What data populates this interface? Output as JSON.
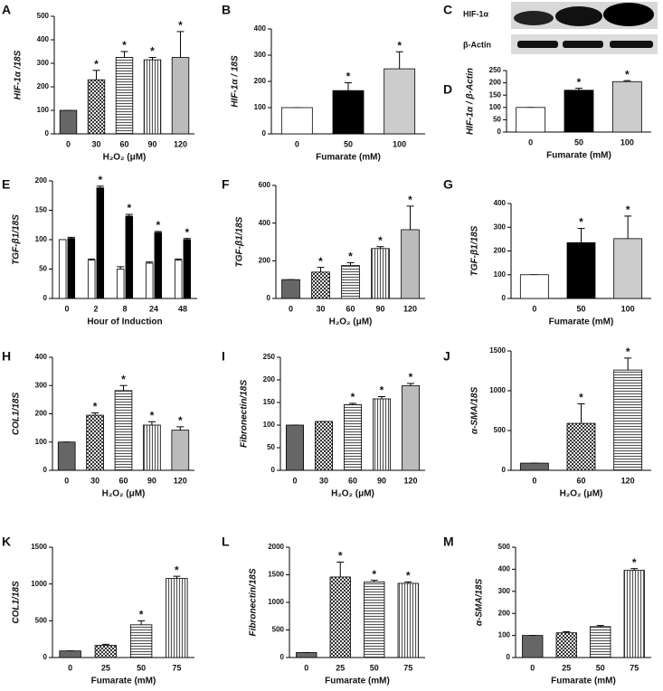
{
  "chart_data": [
    {
      "type": "bar",
      "panel": "A",
      "ylabel": "HIF-1α /18S",
      "xlabel": "H₂O₂ (μM)",
      "categories": [
        "0",
        "30",
        "60",
        "90",
        "120"
      ],
      "values": [
        100,
        230,
        325,
        315,
        325
      ],
      "errors": [
        0,
        40,
        25,
        10,
        110
      ],
      "significance": [
        null,
        "*",
        "*",
        "*",
        "*"
      ],
      "fills": [
        "#666666",
        "checker",
        "hlines",
        "vlines",
        "#bbbbbb"
      ],
      "ylim": [
        0,
        500
      ],
      "yticks": [
        0,
        100,
        200,
        300,
        400,
        500
      ]
    },
    {
      "type": "bar",
      "panel": "B",
      "ylabel": "HIF-1α / 18S",
      "xlabel": "Fumarate (mM)",
      "categories": [
        "0",
        "50",
        "100"
      ],
      "values": [
        100,
        165,
        248
      ],
      "errors": [
        0,
        30,
        65
      ],
      "significance": [
        null,
        "*",
        "*"
      ],
      "fills": [
        "#ffffff",
        "#000000",
        "#cccccc"
      ],
      "ylim": [
        0,
        400
      ],
      "yticks": [
        0,
        100,
        200,
        300,
        400
      ]
    },
    {
      "type": "bar",
      "panel": "D",
      "ylabel": "HIF-1α / β-Actin",
      "xlabel": "Fumarate (mM)",
      "categories": [
        "0",
        "50",
        "100"
      ],
      "values": [
        100,
        170,
        205
      ],
      "errors": [
        0,
        8,
        4
      ],
      "significance": [
        null,
        "*",
        "*"
      ],
      "fills": [
        "#ffffff",
        "#000000",
        "#cccccc"
      ],
      "ylim": [
        0,
        250
      ],
      "yticks": [
        0,
        50,
        100,
        150,
        200,
        250
      ]
    },
    {
      "type": "bar",
      "panel": "E",
      "ylabel": "TGF-β1/18S",
      "xlabel": "Hour of Induction",
      "categories": [
        "0",
        "2",
        "8",
        "24",
        "48"
      ],
      "series": [
        {
          "color": "#ffffff",
          "values": [
            100,
            65,
            50,
            60,
            65
          ],
          "errors": [
            0,
            2,
            4,
            2,
            2
          ],
          "significance": [
            null,
            null,
            null,
            null,
            null
          ]
        },
        {
          "color": "#000000",
          "values": [
            102,
            188,
            140,
            112,
            100
          ],
          "errors": [
            2,
            3,
            3,
            2,
            2
          ],
          "significance": [
            null,
            "*",
            "*",
            "*",
            "*"
          ]
        }
      ],
      "ylim": [
        0,
        200
      ],
      "yticks": [
        0,
        50,
        100,
        150,
        200
      ]
    },
    {
      "type": "bar",
      "panel": "F",
      "ylabel": "TGF-β1/18S",
      "xlabel": "H₂O₂ (μM)",
      "categories": [
        "0",
        "30",
        "60",
        "90",
        "120"
      ],
      "values": [
        100,
        140,
        175,
        265,
        365
      ],
      "errors": [
        0,
        25,
        15,
        10,
        125
      ],
      "significance": [
        null,
        "*",
        "*",
        "*",
        "*"
      ],
      "fills": [
        "#666666",
        "checker",
        "hlines",
        "vlines",
        "#bbbbbb"
      ],
      "ylim": [
        0,
        600
      ],
      "yticks": [
        0,
        200,
        400,
        600
      ]
    },
    {
      "type": "bar",
      "panel": "G",
      "ylabel": "TGF-β1/18S",
      "xlabel": "Fumarate (mM)",
      "categories": [
        "0",
        "50",
        "100"
      ],
      "values": [
        100,
        235,
        252
      ],
      "errors": [
        0,
        60,
        95
      ],
      "significance": [
        null,
        "*",
        "*"
      ],
      "fills": [
        "#ffffff",
        "#000000",
        "#cccccc"
      ],
      "ylim": [
        0,
        400
      ],
      "yticks": [
        0,
        100,
        200,
        300,
        400
      ]
    },
    {
      "type": "bar",
      "panel": "H",
      "ylabel": "COL1/18S",
      "xlabel": "H₂O₂ (μM)",
      "categories": [
        "0",
        "30",
        "60",
        "90",
        "120"
      ],
      "values": [
        100,
        195,
        282,
        160,
        142
      ],
      "errors": [
        0,
        8,
        18,
        12,
        12
      ],
      "significance": [
        null,
        "*",
        "*",
        "*",
        "*"
      ],
      "fills": [
        "#666666",
        "checker",
        "hlines",
        "vlines",
        "#bbbbbb"
      ],
      "ylim": [
        0,
        400
      ],
      "yticks": [
        0,
        100,
        200,
        300,
        400
      ]
    },
    {
      "type": "bar",
      "panel": "I",
      "ylabel": "Fibronectin/18S",
      "xlabel": "H₂O₂ (μM)",
      "categories": [
        "0",
        "30",
        "60",
        "90",
        "120"
      ],
      "values": [
        100,
        108,
        145,
        158,
        187
      ],
      "errors": [
        0,
        0,
        3,
        5,
        5
      ],
      "significance": [
        null,
        null,
        "*",
        "*",
        "*"
      ],
      "fills": [
        "#666666",
        "checker",
        "hlines",
        "vlines",
        "#bbbbbb"
      ],
      "ylim": [
        0,
        250
      ],
      "yticks": [
        0,
        50,
        100,
        150,
        200,
        250
      ]
    },
    {
      "type": "bar",
      "panel": "J",
      "ylabel": "α-SMA/18S",
      "xlabel": "H₂O₂ (μM)",
      "categories": [
        "0",
        "60",
        "120"
      ],
      "values": [
        90,
        590,
        1260
      ],
      "errors": [
        0,
        245,
        150
      ],
      "significance": [
        null,
        "*",
        "*"
      ],
      "fills": [
        "#666666",
        "checker",
        "hlines"
      ],
      "ylim": [
        0,
        1500
      ],
      "yticks": [
        0,
        500,
        1000,
        1500
      ]
    },
    {
      "type": "bar",
      "panel": "K",
      "ylabel": "COL1/18S",
      "xlabel": "Fumarate (mM)",
      "categories": [
        "0",
        "25",
        "50",
        "75"
      ],
      "values": [
        90,
        165,
        445,
        1075
      ],
      "errors": [
        0,
        15,
        55,
        30
      ],
      "significance": [
        null,
        null,
        "*",
        "*"
      ],
      "fills": [
        "#666666",
        "checker",
        "hlines",
        "vlines"
      ],
      "ylim": [
        0,
        1500
      ],
      "yticks": [
        0,
        500,
        1000,
        1500
      ]
    },
    {
      "type": "bar",
      "panel": "L",
      "ylabel": "Fibronectin/18S",
      "xlabel": "Fumarate (mM)",
      "categories": [
        "0",
        "25",
        "50",
        "75"
      ],
      "values": [
        90,
        1460,
        1370,
        1345
      ],
      "errors": [
        0,
        270,
        30,
        25
      ],
      "significance": [
        null,
        "*",
        "*",
        "*"
      ],
      "fills": [
        "#666666",
        "checker",
        "hlines",
        "vlines"
      ],
      "ylim": [
        0,
        2000
      ],
      "yticks": [
        0,
        500,
        1000,
        1500,
        2000
      ]
    },
    {
      "type": "bar",
      "panel": "M",
      "ylabel": "α-SMA/18S",
      "xlabel": "Fumarate (mM)",
      "categories": [
        "0",
        "25",
        "50",
        "75"
      ],
      "values": [
        100,
        112,
        140,
        395
      ],
      "errors": [
        0,
        5,
        5,
        8
      ],
      "significance": [
        null,
        null,
        null,
        "*"
      ],
      "fills": [
        "#666666",
        "checker",
        "hlines",
        "vlines"
      ],
      "ylim": [
        0,
        500
      ],
      "yticks": [
        0,
        100,
        200,
        300,
        400,
        500
      ]
    }
  ],
  "blot": {
    "panel": "C",
    "labels": [
      "HIF-1α",
      "β-Actin"
    ]
  }
}
